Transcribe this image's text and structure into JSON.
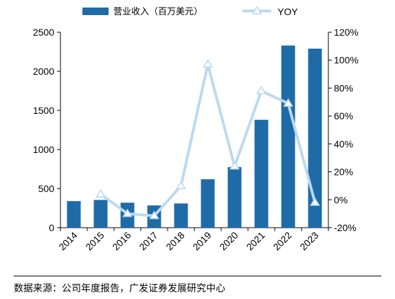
{
  "chart_data": {
    "type": "bar+line",
    "categories": [
      "2014",
      "2015",
      "2016",
      "2017",
      "2018",
      "2019",
      "2020",
      "2021",
      "2022",
      "2023"
    ],
    "series": [
      {
        "name": "营业收入（百万美元）",
        "type": "bar",
        "axis": "left",
        "values": [
          340,
          355,
          320,
          285,
          310,
          620,
          775,
          1380,
          2330,
          2290
        ]
      },
      {
        "name": "YOY",
        "type": "line",
        "axis": "right",
        "values": [
          null,
          4,
          -10,
          -11.5,
          10,
          97,
          24,
          78,
          69,
          -2
        ]
      }
    ],
    "left_axis": {
      "ylim": [
        0,
        2500
      ],
      "ticks": [
        "0",
        "500",
        "1000",
        "1500",
        "2000",
        "2500"
      ]
    },
    "right_axis": {
      "ylim": [
        -20,
        120
      ],
      "ticks": [
        "-20%",
        "0%",
        "20%",
        "40%",
        "60%",
        "80%",
        "100%",
        "120%"
      ]
    },
    "legend_position": "top",
    "colors": {
      "bar": "#1f6ba8",
      "line": "#bcd9f0"
    }
  },
  "source": "数据来源：公司年度报告，广发证券发展研究中心"
}
